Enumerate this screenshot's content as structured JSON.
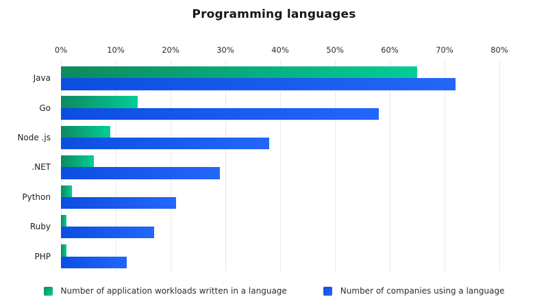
{
  "title": "Programming languages",
  "colors": {
    "background": "#ffffff",
    "gridline": "#e9e9ee",
    "title_text": "#161616",
    "axis_text": "#2b2b2b",
    "workloads_gradient_start": "#0d8a5f",
    "workloads_gradient_end": "#03cd96",
    "companies_gradient_start": "#0b4ee0",
    "companies_gradient_end": "#2366fa"
  },
  "chart_data": {
    "type": "bar",
    "orientation": "horizontal",
    "title": "Programming languages",
    "categories": [
      "Java",
      "Go",
      "Node .js",
      ".NET",
      "Python",
      "Ruby",
      "PHP"
    ],
    "series": [
      {
        "key": "workloads",
        "name": "Number of application workloads written in a language",
        "values": [
          65,
          14,
          9,
          6,
          2,
          1,
          1
        ],
        "color_start": "#0d8a5f",
        "color_end": "#03cd96"
      },
      {
        "key": "companies",
        "name": "Number of companies using a language",
        "values": [
          72,
          58,
          38,
          29,
          21,
          17,
          12
        ],
        "color_start": "#0b4ee0",
        "color_end": "#2366fa"
      }
    ],
    "x_ticks": [
      "0%",
      "10%",
      "20%",
      "30%",
      "40%",
      "50%",
      "60%",
      "70%",
      "80%"
    ],
    "xlim": [
      0,
      80
    ],
    "unit": "percent",
    "grid": true,
    "legend_position": "bottom"
  }
}
